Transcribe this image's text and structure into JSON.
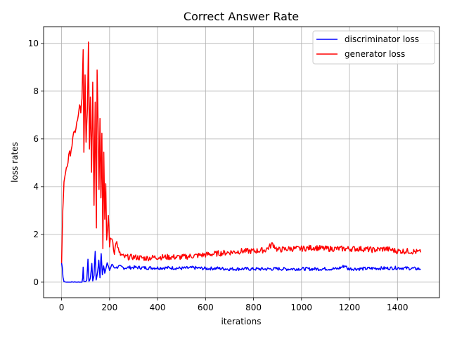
{
  "chart_data": {
    "type": "line",
    "title": "Correct Answer Rate",
    "xlabel": "iterations",
    "ylabel": "loss rates",
    "xlim": [
      -75,
      1575
    ],
    "ylim": [
      -0.65,
      10.7
    ],
    "xticks": [
      0,
      200,
      400,
      600,
      800,
      1000,
      1200,
      1400
    ],
    "yticks": [
      0,
      2,
      4,
      6,
      8,
      10
    ],
    "grid": true,
    "legend_position": "top-right",
    "series": [
      {
        "name": "discriminator loss",
        "color": "#0000ff",
        "points": [
          [
            0,
            0.8
          ],
          [
            3,
            0.6
          ],
          [
            6,
            0.2
          ],
          [
            10,
            0.02
          ],
          [
            20,
            0.0
          ],
          [
            40,
            0.0
          ],
          [
            60,
            0.0
          ],
          [
            85,
            0.0
          ],
          [
            88,
            0.15
          ],
          [
            90,
            0.6
          ],
          [
            93,
            0.05
          ],
          [
            98,
            0.0
          ],
          [
            105,
            0.1
          ],
          [
            110,
            0.95
          ],
          [
            114,
            0.05
          ],
          [
            120,
            0.15
          ],
          [
            126,
            0.8
          ],
          [
            130,
            0.05
          ],
          [
            135,
            0.3
          ],
          [
            140,
            1.3
          ],
          [
            144,
            0.1
          ],
          [
            150,
            0.4
          ],
          [
            155,
            0.9
          ],
          [
            160,
            0.2
          ],
          [
            165,
            1.2
          ],
          [
            170,
            0.3
          ],
          [
            175,
            0.7
          ],
          [
            180,
            0.4
          ],
          [
            190,
            0.8
          ],
          [
            200,
            0.5
          ],
          [
            210,
            0.75
          ],
          [
            220,
            0.6
          ],
          [
            240,
            0.65
          ],
          [
            260,
            0.6
          ],
          [
            300,
            0.62
          ],
          [
            350,
            0.6
          ],
          [
            400,
            0.6
          ],
          [
            450,
            0.6
          ],
          [
            500,
            0.58
          ],
          [
            550,
            0.6
          ],
          [
            600,
            0.57
          ],
          [
            650,
            0.58
          ],
          [
            700,
            0.55
          ],
          [
            750,
            0.56
          ],
          [
            800,
            0.55
          ],
          [
            850,
            0.55
          ],
          [
            900,
            0.56
          ],
          [
            950,
            0.55
          ],
          [
            1000,
            0.56
          ],
          [
            1050,
            0.55
          ],
          [
            1100,
            0.56
          ],
          [
            1150,
            0.56
          ],
          [
            1185,
            0.7
          ],
          [
            1190,
            0.56
          ],
          [
            1250,
            0.56
          ],
          [
            1300,
            0.58
          ],
          [
            1350,
            0.58
          ],
          [
            1400,
            0.6
          ],
          [
            1450,
            0.58
          ],
          [
            1497,
            0.55
          ]
        ]
      },
      {
        "name": "generator loss",
        "color": "#ff0000",
        "points": [
          [
            0,
            0.8
          ],
          [
            5,
            3.0
          ],
          [
            10,
            4.2
          ],
          [
            20,
            4.8
          ],
          [
            30,
            5.2
          ],
          [
            40,
            5.6
          ],
          [
            50,
            6.1
          ],
          [
            60,
            6.5
          ],
          [
            70,
            6.9
          ],
          [
            75,
            7.5
          ],
          [
            80,
            7.0
          ],
          [
            85,
            7.6
          ],
          [
            90,
            9.7
          ],
          [
            93,
            5.6
          ],
          [
            98,
            8.5
          ],
          [
            102,
            6.0
          ],
          [
            108,
            7.3
          ],
          [
            112,
            10.1
          ],
          [
            116,
            5.7
          ],
          [
            120,
            7.8
          ],
          [
            125,
            4.7
          ],
          [
            130,
            8.5
          ],
          [
            135,
            3.3
          ],
          [
            140,
            7.6
          ],
          [
            145,
            2.2
          ],
          [
            148,
            9.0
          ],
          [
            152,
            6.8
          ],
          [
            156,
            4.0
          ],
          [
            160,
            7.0
          ],
          [
            164,
            3.5
          ],
          [
            168,
            6.3
          ],
          [
            172,
            1.4
          ],
          [
            176,
            5.6
          ],
          [
            180,
            2.6
          ],
          [
            184,
            4.0
          ],
          [
            188,
            1.6
          ],
          [
            195,
            2.8
          ],
          [
            200,
            1.6
          ],
          [
            210,
            1.9
          ],
          [
            220,
            1.3
          ],
          [
            230,
            1.7
          ],
          [
            240,
            1.2
          ],
          [
            260,
            1.05
          ],
          [
            300,
            1.05
          ],
          [
            350,
            1.0
          ],
          [
            400,
            1.05
          ],
          [
            450,
            1.05
          ],
          [
            500,
            1.05
          ],
          [
            550,
            1.1
          ],
          [
            600,
            1.15
          ],
          [
            650,
            1.2
          ],
          [
            700,
            1.25
          ],
          [
            750,
            1.3
          ],
          [
            800,
            1.3
          ],
          [
            850,
            1.35
          ],
          [
            880,
            1.6
          ],
          [
            900,
            1.35
          ],
          [
            950,
            1.4
          ],
          [
            1000,
            1.4
          ],
          [
            1050,
            1.45
          ],
          [
            1100,
            1.4
          ],
          [
            1150,
            1.4
          ],
          [
            1200,
            1.4
          ],
          [
            1250,
            1.4
          ],
          [
            1300,
            1.35
          ],
          [
            1350,
            1.4
          ],
          [
            1400,
            1.3
          ],
          [
            1450,
            1.3
          ],
          [
            1497,
            1.25
          ]
        ]
      }
    ]
  }
}
